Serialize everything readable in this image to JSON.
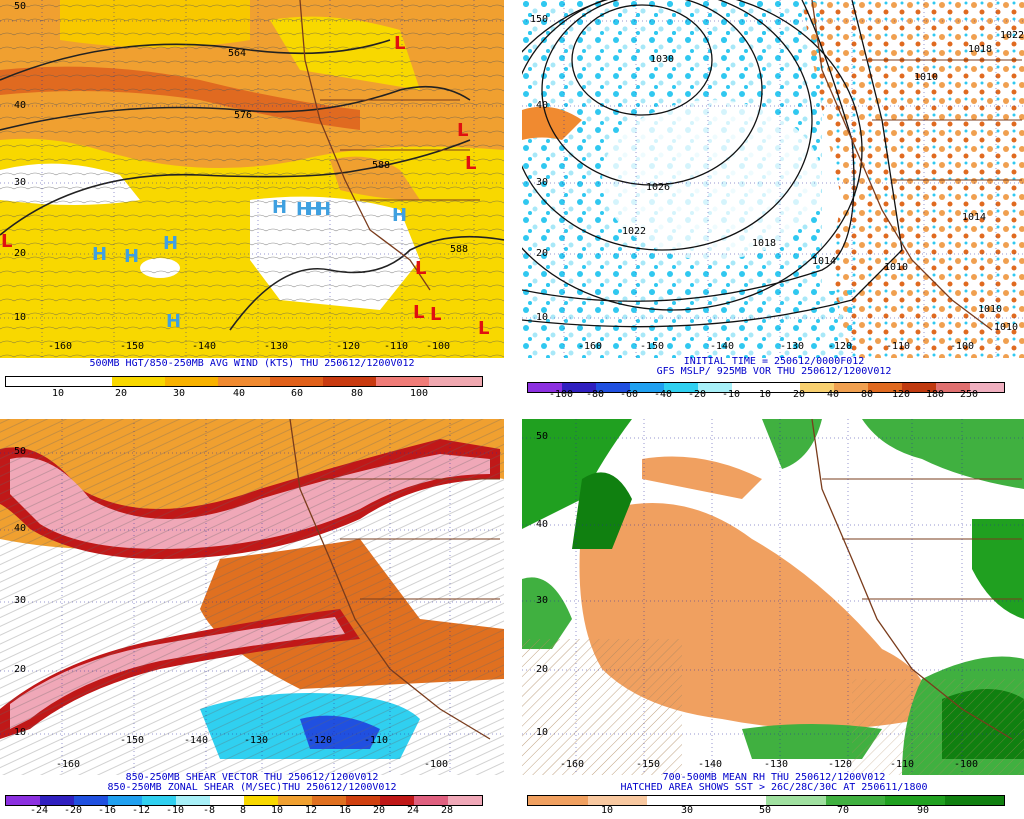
{
  "panels": {
    "p1": {
      "caption": "500MB HGT/850-250MB AVG WIND (KTS) THU 250612/1200V012",
      "lat_labels": [
        "50",
        "40",
        "30",
        "20",
        "10"
      ],
      "lon_labels": [
        "-160",
        "-150",
        "-140",
        "-130",
        "-120",
        "-110",
        "-100"
      ],
      "contour_labels": [
        "564",
        "576",
        "588",
        "588"
      ],
      "ticks": [
        "10",
        "20",
        "30",
        "40",
        "60",
        "80",
        "100"
      ],
      "colors": [
        "#ffffff",
        "#ffffff",
        "#f8d800",
        "#f8b200",
        "#f08a30",
        "#e0601a",
        "#c83a10",
        "#f07c78",
        "#f0a8b0"
      ],
      "highs": [
        "H",
        "H",
        "H",
        "H",
        "H",
        "H",
        "H",
        "H",
        "H"
      ],
      "lows": [
        "L",
        "L",
        "L",
        "L",
        "L",
        "L",
        "L",
        "L",
        "L"
      ]
    },
    "p2": {
      "caption1": "INITIAL TIME = 250612/0000F012",
      "caption2": "GFS MSLP/ 925MB VOR THU 250612/1200V012",
      "lat_labels": [
        "150",
        "40",
        "30",
        "20",
        "10"
      ],
      "lon_labels": [
        "-160",
        "-150",
        "-140",
        "-130",
        "-120",
        "-110",
        "-100"
      ],
      "contour_labels": [
        "1030",
        "1026",
        "1022",
        "1018",
        "1014",
        "1010",
        "1010",
        "1010",
        "1022",
        "1018",
        "1014",
        "1010"
      ],
      "ticks": [
        "-100",
        "-80",
        "-60",
        "-40",
        "-20",
        "-10",
        "10",
        "20",
        "40",
        "80",
        "120",
        "180",
        "250"
      ],
      "colors": [
        "#8c30e0",
        "#3020c0",
        "#2050e0",
        "#20a0f0",
        "#30d0f0",
        "#a8f0f8",
        "#ffffff",
        "#ffffff",
        "#f8d070",
        "#f0a050",
        "#e06a20",
        "#c03a10",
        "#e07070",
        "#f0b0c0"
      ]
    },
    "p3": {
      "caption1": "850-250MB SHEAR VECTOR THU 250612/1200V012",
      "caption2": "850-250MB ZONAL SHEAR (M/SEC)THU 250612/1200V012",
      "lat_labels": [
        "50",
        "40",
        "30",
        "20",
        "10"
      ],
      "lon_labels": [
        "-160",
        "-150",
        "-140",
        "-130",
        "-120",
        "-110",
        "-100"
      ],
      "ticks": [
        "-24",
        "-20",
        "-16",
        "-12",
        "-10",
        "-8",
        "8",
        "10",
        "12",
        "16",
        "20",
        "24",
        "28"
      ],
      "colors": [
        "#8c30e0",
        "#3020c0",
        "#2050e0",
        "#20a0f0",
        "#30d0f0",
        "#a8f0f8",
        "#ffffff",
        "#f8d800",
        "#f0a030",
        "#e07020",
        "#d04010",
        "#c01818",
        "#e06080",
        "#f0a8b8"
      ]
    },
    "p4": {
      "caption1": "700-500MB MEAN RH THU 250612/1200V012",
      "caption2": "HATCHED AREA SHOWS SST > 26C/28C/30C AT 250611/1800",
      "lat_labels": [
        "50",
        "40",
        "30",
        "20",
        "10"
      ],
      "lon_labels": [
        "-160",
        "-150",
        "-140",
        "-130",
        "-120",
        "-110",
        "-100"
      ],
      "ticks": [
        "10",
        "30",
        "50",
        "70",
        "90"
      ],
      "colors": [
        "#f0a060",
        "#f8c8a0",
        "#ffffff",
        "#ffffff",
        "#a0e0a0",
        "#40b040",
        "#20a020",
        "#108010"
      ]
    }
  }
}
